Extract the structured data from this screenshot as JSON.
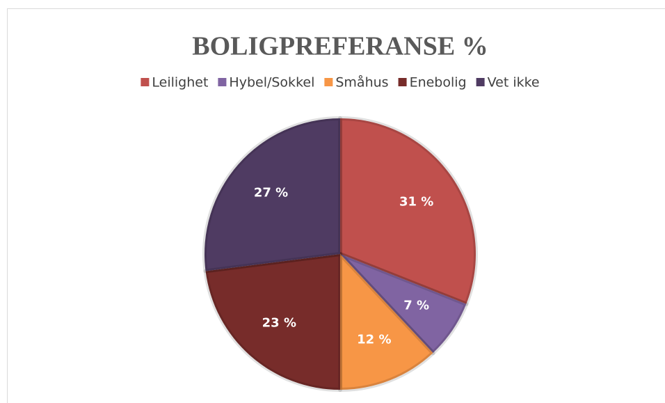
{
  "chart_data": {
    "type": "pie",
    "title": "BOLIGPREFERANSE %",
    "categories": [
      "Leilighet",
      "Hybel/Sokkel",
      "Småhus",
      "Enebolig",
      "Vet ikke"
    ],
    "values": [
      31,
      7,
      12,
      23,
      27
    ],
    "value_labels": [
      "31 %",
      "7 %",
      "12 %",
      "23 %",
      "27 %"
    ],
    "colors": [
      "#c0504d",
      "#8064a2",
      "#f79646",
      "#772c2a",
      "#4f3b62"
    ],
    "legend": "top"
  }
}
